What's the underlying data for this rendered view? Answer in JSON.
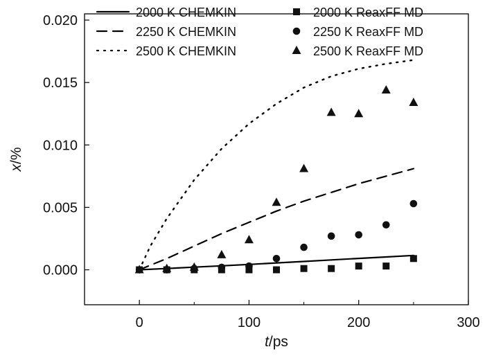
{
  "chart_data": {
    "type": "scatter+line",
    "xlabel_var": "t",
    "xlabel_unit": "/ps",
    "ylabel_var": "x",
    "ylabel_unit": "/%",
    "xlim": [
      -50,
      300
    ],
    "ylim": [
      -0.0028,
      0.0205
    ],
    "xticks": [
      0,
      100,
      200,
      300
    ],
    "xtick_labels": [
      "0",
      "100",
      "200",
      "300"
    ],
    "yticks": [
      0.0,
      0.005,
      0.01,
      0.015,
      0.02
    ],
    "ytick_labels": [
      "0.000",
      "0.005",
      "0.010",
      "0.015",
      "0.020"
    ],
    "legend_position": "top",
    "line_series": [
      {
        "name": "2000 K CHEMKIN",
        "style": "solid",
        "x": [
          0,
          25,
          50,
          75,
          100,
          125,
          150,
          175,
          200,
          225,
          250
        ],
        "values": [
          0.0,
          0.0001,
          0.00021,
          0.00032,
          0.00043,
          0.00055,
          0.00067,
          0.00079,
          0.00091,
          0.00103,
          0.00115
        ]
      },
      {
        "name": "2250 K CHEMKIN",
        "style": "dashed",
        "x": [
          0,
          25,
          50,
          75,
          100,
          125,
          150,
          175,
          200,
          225,
          250
        ],
        "values": [
          0.0,
          0.0009,
          0.0019,
          0.0029,
          0.0038,
          0.0047,
          0.0055,
          0.0062,
          0.0069,
          0.0075,
          0.0081
        ]
      },
      {
        "name": "2500 K CHEMKIN",
        "style": "dotted",
        "x": [
          0,
          10,
          25,
          50,
          75,
          100,
          125,
          150,
          175,
          200,
          225,
          250
        ],
        "values": [
          0.0,
          0.0019,
          0.0041,
          0.0072,
          0.0097,
          0.0117,
          0.0133,
          0.0146,
          0.0155,
          0.0161,
          0.0165,
          0.0168
        ]
      }
    ],
    "scatter_series": [
      {
        "name": "2000 K ReaxFF MD",
        "marker": "square",
        "x": [
          0,
          25,
          50,
          75,
          100,
          125,
          150,
          175,
          200,
          225,
          250
        ],
        "values": [
          0.0,
          0.0,
          0.0,
          0.0,
          0.0,
          0.0,
          0.0001,
          0.0001,
          0.0003,
          0.0003,
          0.0009
        ]
      },
      {
        "name": "2250 K ReaxFF MD",
        "marker": "circle",
        "x": [
          0,
          25,
          50,
          75,
          100,
          125,
          150,
          175,
          200,
          225,
          250
        ],
        "values": [
          0.0,
          0.0,
          0.0001,
          0.0002,
          0.0003,
          0.0009,
          0.0018,
          0.0027,
          0.0028,
          0.0036,
          0.0053
        ]
      },
      {
        "name": "2500 K ReaxFF MD",
        "marker": "triangle",
        "x": [
          0,
          25,
          50,
          75,
          100,
          125,
          150,
          175,
          200,
          225,
          250
        ],
        "values": [
          0.0,
          0.0001,
          0.0002,
          0.0012,
          0.0024,
          0.0054,
          0.0081,
          0.0126,
          0.0125,
          0.0144,
          0.0134
        ]
      }
    ],
    "legend_lines": [
      "2000 K CHEMKIN",
      "2250 K CHEMKIN",
      "2500 K CHEMKIN"
    ],
    "legend_markers": [
      "2000 K ReaxFF MD",
      "2250 K ReaxFF MD",
      "2500 K ReaxFF MD"
    ]
  }
}
